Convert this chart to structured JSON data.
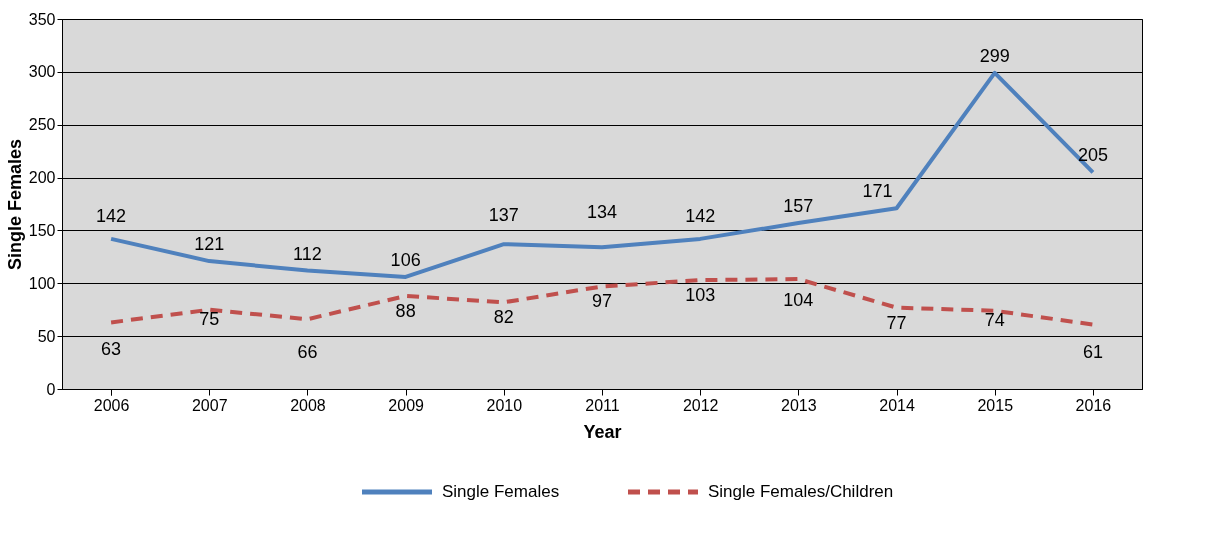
{
  "chart_data": {
    "type": "line",
    "xlabel": "Year",
    "ylabel": "Single Females",
    "categories": [
      "2006",
      "2007",
      "2008",
      "2009",
      "2010",
      "2011",
      "2012",
      "2013",
      "2014",
      "2015",
      "2016"
    ],
    "series": [
      {
        "name": "Single Females",
        "color": "#4f81bd",
        "line_style": "solid",
        "values": [
          142,
          121,
          112,
          106,
          137,
          134,
          142,
          157,
          171,
          299,
          205
        ]
      },
      {
        "name": "Single Females/Children",
        "color": "#c0504d",
        "line_style": "dashed",
        "values": [
          63,
          75,
          66,
          88,
          82,
          97,
          103,
          104,
          77,
          74,
          61
        ]
      }
    ],
    "ylim": [
      0,
      350
    ],
    "yticks": [
      0,
      50,
      100,
      150,
      200,
      250,
      300,
      350
    ],
    "grid": "y",
    "legend": "bottom",
    "data_labels": true,
    "marker": "none"
  }
}
